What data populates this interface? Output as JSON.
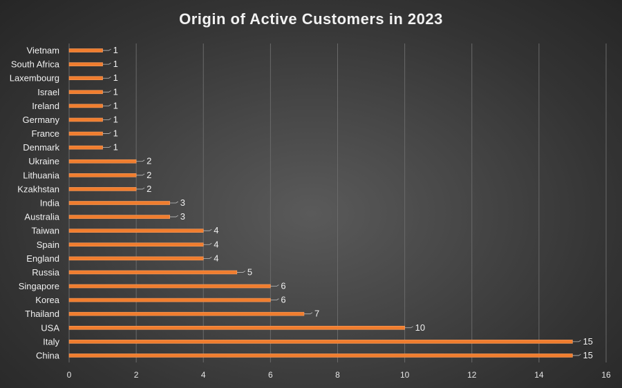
{
  "chart_data": {
    "type": "bar",
    "orientation": "horizontal",
    "title": "Origin of Active Customers in 2023",
    "xlabel": "",
    "ylabel": "",
    "xlim": [
      0,
      16
    ],
    "x_ticks": [
      0,
      2,
      4,
      6,
      8,
      10,
      12,
      14,
      16
    ],
    "grid": "vertical",
    "legend": "none",
    "categories": [
      "Vietnam",
      "South Africa",
      "Laxembourg",
      "Israel",
      "Ireland",
      "Germany",
      "France",
      "Denmark",
      "Ukraine",
      "Lithuania",
      "Kzakhstan",
      "India",
      "Australia",
      "Taiwan",
      "Spain",
      "England",
      "Russia",
      "Singapore",
      "Korea",
      "Thailand",
      "USA",
      "Italy",
      "China"
    ],
    "values": [
      1,
      1,
      1,
      1,
      1,
      1,
      1,
      1,
      2,
      2,
      2,
      3,
      3,
      4,
      4,
      4,
      5,
      6,
      6,
      7,
      10,
      15,
      15
    ],
    "colors": {
      "bar": "#f07d2e",
      "bar_edge": "#ffa060",
      "background": "#3c3c3c",
      "text": "#f0f0f0",
      "grid": "#6a6a6a"
    }
  }
}
